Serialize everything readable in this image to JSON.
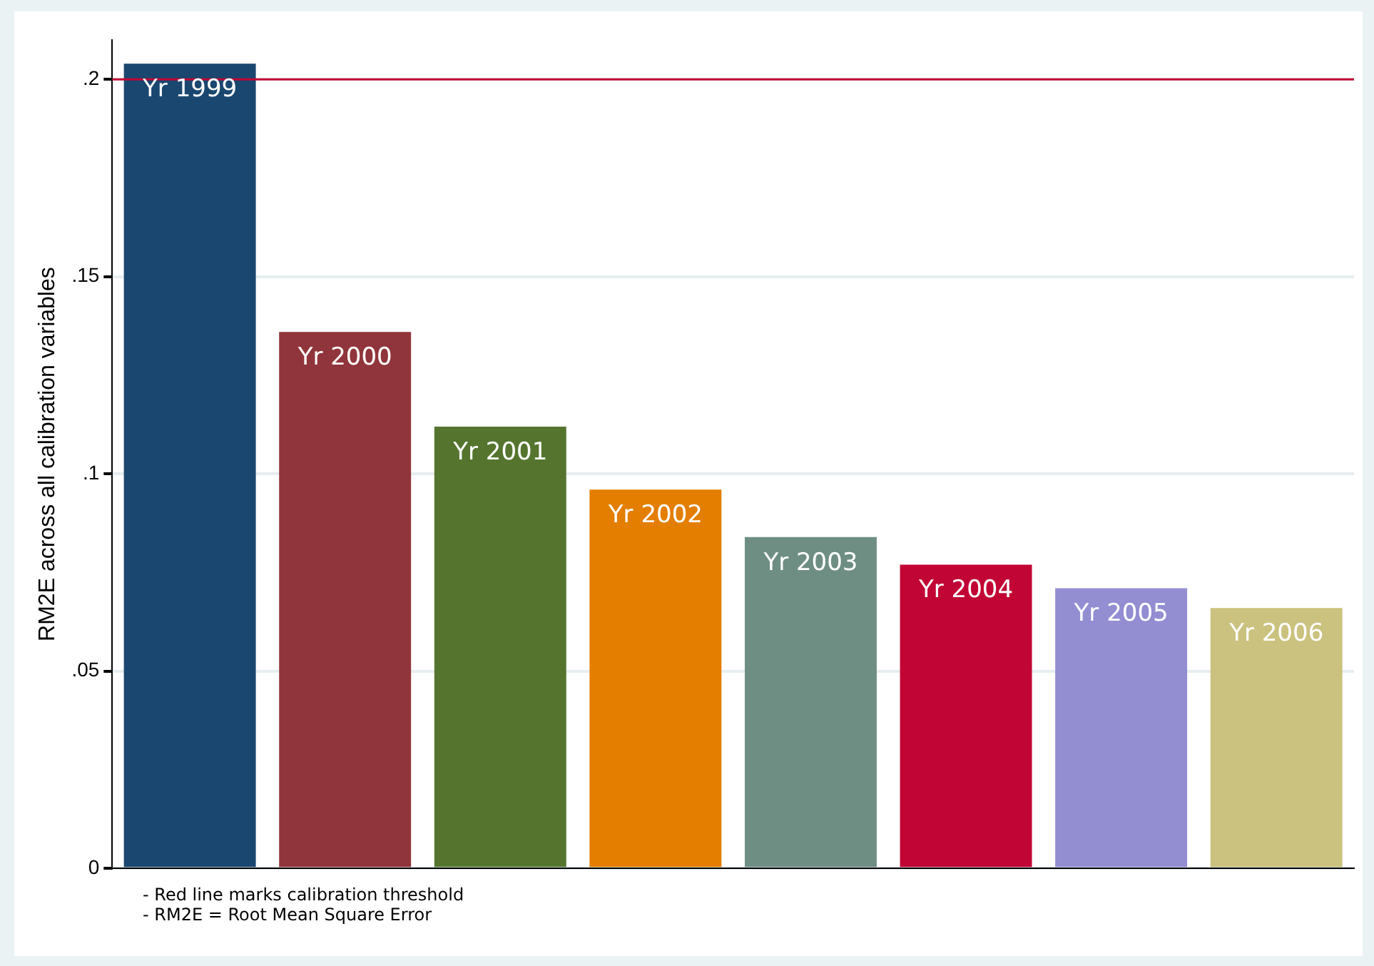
{
  "chart_data": {
    "type": "bar",
    "ylabel": "RM2E across all calibration variables",
    "categories": [
      "Yr 1999",
      "Yr 2000",
      "Yr 2001",
      "Yr 2002",
      "Yr 2003",
      "Yr 2004",
      "Yr 2005",
      "Yr 2006"
    ],
    "values": [
      0.204,
      0.136,
      0.112,
      0.096,
      0.084,
      0.077,
      0.071,
      0.066
    ],
    "colors": [
      "#1a476f",
      "#90353b",
      "#55752f",
      "#e37e00",
      "#6e8e84",
      "#c10534",
      "#938dd2",
      "#cac27e"
    ],
    "ylim": [
      0,
      0.21
    ],
    "yticks": [
      {
        "value": 0,
        "label": "0"
      },
      {
        "value": 0.05,
        "label": ".05"
      },
      {
        "value": 0.1,
        "label": ".1"
      },
      {
        "value": 0.15,
        "label": ".15"
      },
      {
        "value": 0.2,
        "label": ".2"
      }
    ],
    "grid": "y",
    "legend": false,
    "ref_lines": [
      {
        "axis": "y",
        "value": 0.2,
        "color": "#c10534"
      }
    ],
    "annotations": [
      "- Red line marks calibration threshold",
      "- RM2E = Root Mean Square Error"
    ]
  }
}
